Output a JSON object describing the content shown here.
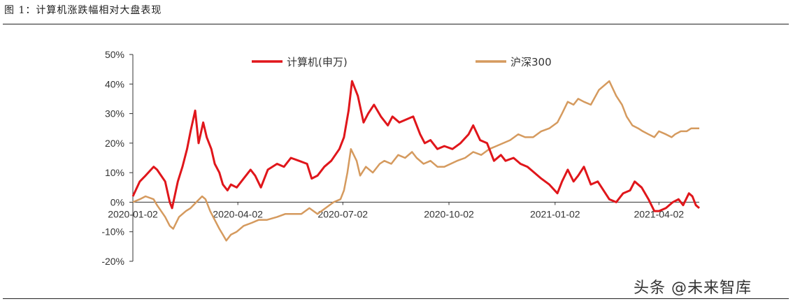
{
  "figure": {
    "title": "图 1：计算机涨跌幅相对大盘表现",
    "watermark": "头条 @未来智库"
  },
  "chart_data": {
    "type": "line",
    "title": "图 1：计算机涨跌幅相对大盘表现",
    "xlabel": "",
    "ylabel": "",
    "ylim": [
      -0.2,
      0.5
    ],
    "yticks": [
      -0.2,
      -0.1,
      0,
      0.1,
      0.2,
      0.3,
      0.4,
      0.5
    ],
    "ytick_labels": [
      "-20%",
      "-10%",
      "0%",
      "10%",
      "20%",
      "30%",
      "40%",
      "50%"
    ],
    "xlim": [
      "2020-01-02",
      "2021-05-07"
    ],
    "xtick_labels": [
      "2020-01-02",
      "2020-04-02",
      "2020-07-02",
      "2020-10-02",
      "2021-01-02",
      "2021-04-02"
    ],
    "grid": false,
    "legend_position": "top",
    "series": [
      {
        "name": "计算机(申万)",
        "color": "#e0161b",
        "points": [
          [
            "2020-01-02",
            0.02
          ],
          [
            "2020-01-08",
            0.07
          ],
          [
            "2020-01-13",
            0.09
          ],
          [
            "2020-01-20",
            0.12
          ],
          [
            "2020-01-23",
            0.11
          ],
          [
            "2020-01-30",
            0.07
          ],
          [
            "2020-02-03",
            0.0
          ],
          [
            "2020-02-05",
            -0.02
          ],
          [
            "2020-02-10",
            0.07
          ],
          [
            "2020-02-14",
            0.12
          ],
          [
            "2020-02-18",
            0.18
          ],
          [
            "2020-02-21",
            0.24
          ],
          [
            "2020-02-25",
            0.31
          ],
          [
            "2020-02-28",
            0.2
          ],
          [
            "2020-03-03",
            0.27
          ],
          [
            "2020-03-06",
            0.22
          ],
          [
            "2020-03-10",
            0.18
          ],
          [
            "2020-03-13",
            0.13
          ],
          [
            "2020-03-17",
            0.1
          ],
          [
            "2020-03-20",
            0.06
          ],
          [
            "2020-03-24",
            0.04
          ],
          [
            "2020-03-27",
            0.06
          ],
          [
            "2020-04-01",
            0.05
          ],
          [
            "2020-04-07",
            0.08
          ],
          [
            "2020-04-13",
            0.11
          ],
          [
            "2020-04-17",
            0.09
          ],
          [
            "2020-04-22",
            0.05
          ],
          [
            "2020-04-28",
            0.11
          ],
          [
            "2020-05-06",
            0.13
          ],
          [
            "2020-05-12",
            0.12
          ],
          [
            "2020-05-18",
            0.15
          ],
          [
            "2020-05-25",
            0.14
          ],
          [
            "2020-06-01",
            0.13
          ],
          [
            "2020-06-05",
            0.08
          ],
          [
            "2020-06-10",
            0.09
          ],
          [
            "2020-06-16",
            0.12
          ],
          [
            "2020-06-22",
            0.14
          ],
          [
            "2020-06-29",
            0.18
          ],
          [
            "2020-07-03",
            0.22
          ],
          [
            "2020-07-07",
            0.31
          ],
          [
            "2020-07-10",
            0.41
          ],
          [
            "2020-07-15",
            0.36
          ],
          [
            "2020-07-20",
            0.27
          ],
          [
            "2020-07-24",
            0.3
          ],
          [
            "2020-07-29",
            0.33
          ],
          [
            "2020-08-04",
            0.29
          ],
          [
            "2020-08-10",
            0.26
          ],
          [
            "2020-08-14",
            0.29
          ],
          [
            "2020-08-20",
            0.27
          ],
          [
            "2020-08-26",
            0.28
          ],
          [
            "2020-09-01",
            0.29
          ],
          [
            "2020-09-07",
            0.23
          ],
          [
            "2020-09-11",
            0.2
          ],
          [
            "2020-09-16",
            0.21
          ],
          [
            "2020-09-22",
            0.18
          ],
          [
            "2020-09-28",
            0.19
          ],
          [
            "2020-10-05",
            0.18
          ],
          [
            "2020-10-12",
            0.2
          ],
          [
            "2020-10-19",
            0.23
          ],
          [
            "2020-10-23",
            0.26
          ],
          [
            "2020-10-29",
            0.21
          ],
          [
            "2020-11-04",
            0.2
          ],
          [
            "2020-11-10",
            0.14
          ],
          [
            "2020-11-16",
            0.16
          ],
          [
            "2020-11-20",
            0.14
          ],
          [
            "2020-11-27",
            0.15
          ],
          [
            "2020-12-03",
            0.13
          ],
          [
            "2020-12-09",
            0.12
          ],
          [
            "2020-12-15",
            0.1
          ],
          [
            "2020-12-21",
            0.08
          ],
          [
            "2020-12-28",
            0.06
          ],
          [
            "2021-01-04",
            0.03
          ],
          [
            "2021-01-08",
            0.07
          ],
          [
            "2021-01-13",
            0.11
          ],
          [
            "2021-01-18",
            0.07
          ],
          [
            "2021-01-22",
            0.09
          ],
          [
            "2021-01-27",
            0.12
          ],
          [
            "2021-02-02",
            0.06
          ],
          [
            "2021-02-08",
            0.07
          ],
          [
            "2021-02-18",
            0.01
          ],
          [
            "2021-02-24",
            0.0
          ],
          [
            "2021-03-02",
            0.03
          ],
          [
            "2021-03-08",
            0.04
          ],
          [
            "2021-03-12",
            0.07
          ],
          [
            "2021-03-18",
            0.05
          ],
          [
            "2021-03-24",
            0.01
          ],
          [
            "2021-03-29",
            -0.03
          ],
          [
            "2021-04-02",
            -0.03
          ],
          [
            "2021-04-08",
            -0.02
          ],
          [
            "2021-04-14",
            0.0
          ],
          [
            "2021-04-19",
            0.01
          ],
          [
            "2021-04-23",
            -0.01
          ],
          [
            "2021-04-28",
            0.03
          ],
          [
            "2021-05-01",
            0.02
          ],
          [
            "2021-05-04",
            -0.01
          ],
          [
            "2021-05-07",
            -0.02
          ]
        ]
      },
      {
        "name": "沪深300",
        "color": "#d59a5e",
        "points": [
          [
            "2020-01-02",
            0.0
          ],
          [
            "2020-01-08",
            0.01
          ],
          [
            "2020-01-13",
            0.02
          ],
          [
            "2020-01-20",
            0.01
          ],
          [
            "2020-01-23",
            -0.01
          ],
          [
            "2020-01-30",
            -0.05
          ],
          [
            "2020-02-03",
            -0.08
          ],
          [
            "2020-02-06",
            -0.09
          ],
          [
            "2020-02-11",
            -0.05
          ],
          [
            "2020-02-17",
            -0.03
          ],
          [
            "2020-02-21",
            -0.02
          ],
          [
            "2020-02-26",
            0.0
          ],
          [
            "2020-03-02",
            0.02
          ],
          [
            "2020-03-05",
            0.01
          ],
          [
            "2020-03-09",
            -0.03
          ],
          [
            "2020-03-13",
            -0.06
          ],
          [
            "2020-03-17",
            -0.09
          ],
          [
            "2020-03-20",
            -0.11
          ],
          [
            "2020-03-23",
            -0.13
          ],
          [
            "2020-03-27",
            -0.11
          ],
          [
            "2020-04-01",
            -0.1
          ],
          [
            "2020-04-07",
            -0.08
          ],
          [
            "2020-04-14",
            -0.07
          ],
          [
            "2020-04-20",
            -0.06
          ],
          [
            "2020-04-27",
            -0.06
          ],
          [
            "2020-05-06",
            -0.05
          ],
          [
            "2020-05-13",
            -0.04
          ],
          [
            "2020-05-20",
            -0.04
          ],
          [
            "2020-05-27",
            -0.04
          ],
          [
            "2020-06-03",
            -0.02
          ],
          [
            "2020-06-10",
            -0.04
          ],
          [
            "2020-06-17",
            -0.02
          ],
          [
            "2020-06-24",
            0.0
          ],
          [
            "2020-06-30",
            0.01
          ],
          [
            "2020-07-03",
            0.04
          ],
          [
            "2020-07-06",
            0.1
          ],
          [
            "2020-07-09",
            0.18
          ],
          [
            "2020-07-14",
            0.14
          ],
          [
            "2020-07-17",
            0.09
          ],
          [
            "2020-07-22",
            0.12
          ],
          [
            "2020-07-28",
            0.1
          ],
          [
            "2020-08-03",
            0.13
          ],
          [
            "2020-08-07",
            0.14
          ],
          [
            "2020-08-13",
            0.13
          ],
          [
            "2020-08-19",
            0.16
          ],
          [
            "2020-08-25",
            0.15
          ],
          [
            "2020-08-31",
            0.17
          ],
          [
            "2020-09-04",
            0.15
          ],
          [
            "2020-09-10",
            0.13
          ],
          [
            "2020-09-16",
            0.14
          ],
          [
            "2020-09-22",
            0.12
          ],
          [
            "2020-09-28",
            0.12
          ],
          [
            "2020-10-09",
            0.14
          ],
          [
            "2020-10-16",
            0.15
          ],
          [
            "2020-10-23",
            0.17
          ],
          [
            "2020-10-30",
            0.16
          ],
          [
            "2020-11-06",
            0.18
          ],
          [
            "2020-11-12",
            0.19
          ],
          [
            "2020-11-18",
            0.2
          ],
          [
            "2020-11-24",
            0.21
          ],
          [
            "2020-12-01",
            0.23
          ],
          [
            "2020-12-07",
            0.22
          ],
          [
            "2020-12-14",
            0.22
          ],
          [
            "2020-12-21",
            0.24
          ],
          [
            "2020-12-28",
            0.25
          ],
          [
            "2021-01-04",
            0.27
          ],
          [
            "2021-01-08",
            0.3
          ],
          [
            "2021-01-13",
            0.34
          ],
          [
            "2021-01-18",
            0.33
          ],
          [
            "2021-01-22",
            0.35
          ],
          [
            "2021-01-27",
            0.34
          ],
          [
            "2021-02-02",
            0.33
          ],
          [
            "2021-02-09",
            0.38
          ],
          [
            "2021-02-18",
            0.41
          ],
          [
            "2021-02-24",
            0.36
          ],
          [
            "2021-03-01",
            0.33
          ],
          [
            "2021-03-05",
            0.29
          ],
          [
            "2021-03-10",
            0.26
          ],
          [
            "2021-03-15",
            0.25
          ],
          [
            "2021-03-19",
            0.24
          ],
          [
            "2021-03-24",
            0.23
          ],
          [
            "2021-03-29",
            0.22
          ],
          [
            "2021-04-02",
            0.24
          ],
          [
            "2021-04-08",
            0.23
          ],
          [
            "2021-04-13",
            0.22
          ],
          [
            "2021-04-16",
            0.23
          ],
          [
            "2021-04-21",
            0.24
          ],
          [
            "2021-04-26",
            0.24
          ],
          [
            "2021-04-30",
            0.25
          ],
          [
            "2021-05-07",
            0.25
          ]
        ]
      }
    ]
  }
}
